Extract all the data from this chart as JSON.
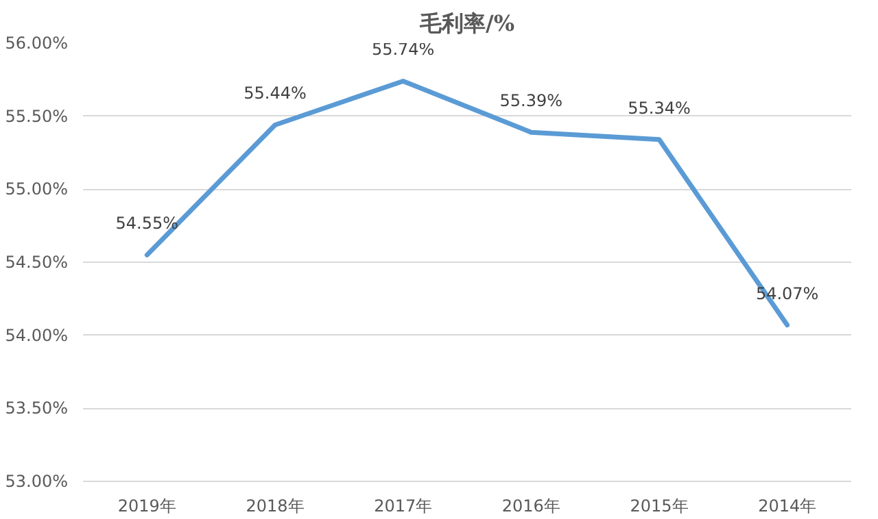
{
  "chart_data": {
    "type": "line",
    "title": "毛利率/%",
    "categories": [
      "2019年",
      "2018年",
      "2017年",
      "2016年",
      "2015年",
      "2014年"
    ],
    "series": [
      {
        "color": "#5b9bd5",
        "values": [
          54.55,
          55.44,
          55.74,
          55.39,
          55.34,
          54.07
        ],
        "value_labels": [
          "54.55%",
          "55.44%",
          "55.74%",
          "55.39%",
          "55.34%",
          "54.07%"
        ]
      }
    ],
    "ylim": [
      53,
      56
    ],
    "yticks": [
      {
        "value": 53,
        "label": "53.00%"
      },
      {
        "value": 53.5,
        "label": "53.50%"
      },
      {
        "value": 54,
        "label": "54.00%"
      },
      {
        "value": 54.5,
        "label": "54.50%"
      },
      {
        "value": 55,
        "label": "55.00%"
      },
      {
        "value": 55.5,
        "label": "55.50%"
      },
      {
        "value": 56,
        "label": "56.00%"
      }
    ],
    "grid": "y",
    "marker": "none",
    "line_style": "solid"
  }
}
